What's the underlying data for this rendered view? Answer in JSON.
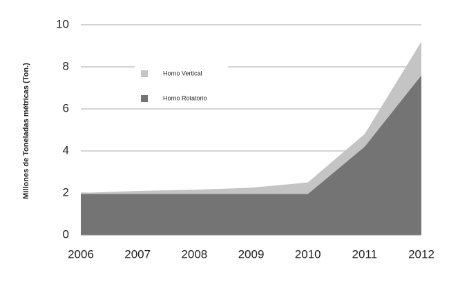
{
  "chart_data": {
    "type": "stacked_area",
    "y_label": "Millones de Toneladas métricas (Ton.)",
    "x": [
      2006,
      2007,
      2008,
      2009,
      2010,
      2011,
      2012
    ],
    "xlim": [
      2006,
      2012
    ],
    "xticks": [
      2006,
      2007,
      2008,
      2009,
      2010,
      2011,
      2012
    ],
    "ylim": [
      0,
      10
    ],
    "yticks": [
      0,
      2,
      4,
      6,
      8,
      10
    ],
    "grid": true,
    "series": [
      {
        "name": "Horno Rotatorio",
        "color": "#747474",
        "values": [
          1.95,
          1.95,
          1.95,
          1.95,
          1.95,
          4.2,
          7.6
        ]
      },
      {
        "name": "Horno Vertical",
        "color": "#c4c4c4",
        "values": [
          0.05,
          0.15,
          0.2,
          0.3,
          0.55,
          0.6,
          1.6
        ]
      }
    ]
  }
}
